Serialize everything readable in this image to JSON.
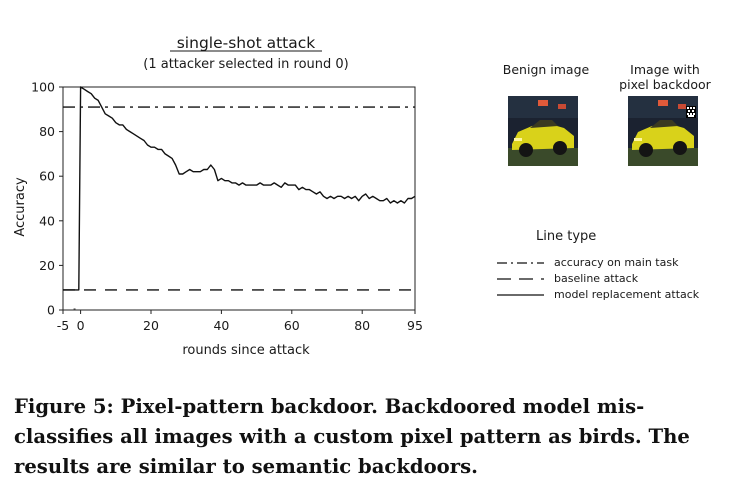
{
  "figure": {
    "caption_lines": [
      "Figure 5: Pixel-pattern backdoor. Backdoored model mis-",
      "classifies all images with a custom pixel pattern as birds. The",
      "results are similar to semantic backdoors."
    ],
    "benign_label": "Benign image",
    "backdoor_label": [
      "Image with",
      "pixel backdoor"
    ],
    "legend": {
      "title": "Line type",
      "items": [
        {
          "label": "accuracy on main task",
          "style": "dashdot"
        },
        {
          "label": "baseline attack",
          "style": "dashed"
        },
        {
          "label": "model replacement attack",
          "style": "solid"
        }
      ]
    },
    "colors": {
      "line": "#111111",
      "car": "#d9d21a",
      "background": "#1b2230"
    }
  },
  "chart_data": {
    "type": "line",
    "title": "single-shot attack",
    "subtitle": "(1 attacker selected in round 0)",
    "xlabel": "rounds since attack",
    "ylabel": "Accuracy",
    "xlim": [
      -5,
      95
    ],
    "ylim": [
      0,
      100
    ],
    "xticks": [
      "-5",
      "0",
      "20",
      "40",
      "60",
      "80",
      "95"
    ],
    "yticks": [
      "0",
      "20",
      "40",
      "60",
      "80",
      "100"
    ],
    "grid": false,
    "series": [
      {
        "name": "accuracy on main task",
        "style": "dashdot",
        "x": [
          -5,
          95
        ],
        "values": [
          91,
          91
        ]
      },
      {
        "name": "baseline attack",
        "style": "dashed",
        "x": [
          -5,
          95
        ],
        "values": [
          9,
          9
        ]
      },
      {
        "name": "model replacement attack",
        "style": "solid",
        "x": [
          -5,
          -0.5,
          0,
          1,
          2,
          3,
          4,
          5,
          6,
          7,
          8,
          9,
          10,
          11,
          12,
          13,
          14,
          15,
          16,
          17,
          18,
          19,
          20,
          21,
          22,
          23,
          24,
          25,
          26,
          27,
          28,
          29,
          30,
          31,
          32,
          33,
          34,
          35,
          36,
          37,
          38,
          39,
          40,
          41,
          42,
          43,
          44,
          45,
          46,
          47,
          48,
          49,
          50,
          51,
          52,
          53,
          54,
          55,
          56,
          57,
          58,
          59,
          60,
          61,
          62,
          63,
          64,
          65,
          66,
          67,
          68,
          69,
          70,
          71,
          72,
          73,
          74,
          75,
          76,
          77,
          78,
          79,
          80,
          81,
          82,
          83,
          84,
          85,
          86,
          87,
          88,
          89,
          90,
          91,
          92,
          93,
          94,
          95
        ],
        "values": [
          9,
          9,
          100,
          99,
          98,
          97,
          95,
          94,
          91,
          88,
          87,
          86,
          84,
          83,
          83,
          81,
          80,
          79,
          78,
          77,
          76,
          74,
          73,
          73,
          72,
          72,
          70,
          69,
          68,
          65,
          61,
          61,
          62,
          63,
          62,
          62,
          62,
          63,
          63,
          65,
          63,
          58,
          59,
          58,
          58,
          57,
          57,
          56,
          57,
          56,
          56,
          56,
          56,
          57,
          56,
          56,
          56,
          57,
          56,
          55,
          57,
          56,
          56,
          56,
          54,
          55,
          54,
          54,
          53,
          52,
          53,
          51,
          50,
          51,
          50,
          51,
          51,
          50,
          51,
          50,
          51,
          49,
          51,
          52,
          50,
          51,
          50,
          49,
          49,
          50,
          48,
          49,
          48,
          49,
          48,
          50,
          50,
          51
        ]
      }
    ]
  }
}
